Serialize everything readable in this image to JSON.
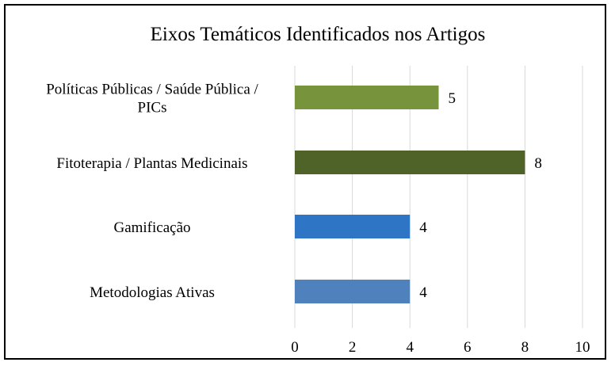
{
  "chart_data": {
    "type": "bar",
    "orientation": "horizontal",
    "title": "Eixos Temáticos Identificados nos Artigos",
    "categories": [
      [
        "Políticas Públicas / Saúde Pública /",
        "PICs"
      ],
      [
        "Fitoterapia / Plantas Medicinais"
      ],
      [
        "Gamificação"
      ],
      [
        "Metodologias Ativas"
      ]
    ],
    "values": [
      5,
      8,
      4,
      4
    ],
    "colors": [
      "#77933c",
      "#4f6228",
      "#2e75c6",
      "#4f81bd"
    ],
    "data_labels": [
      "5",
      "8",
      "4",
      "4"
    ],
    "xlim": [
      0,
      10
    ],
    "x_ticks": [
      0,
      2,
      4,
      6,
      8,
      10
    ],
    "gridlines": "vertical",
    "legend": "none"
  }
}
